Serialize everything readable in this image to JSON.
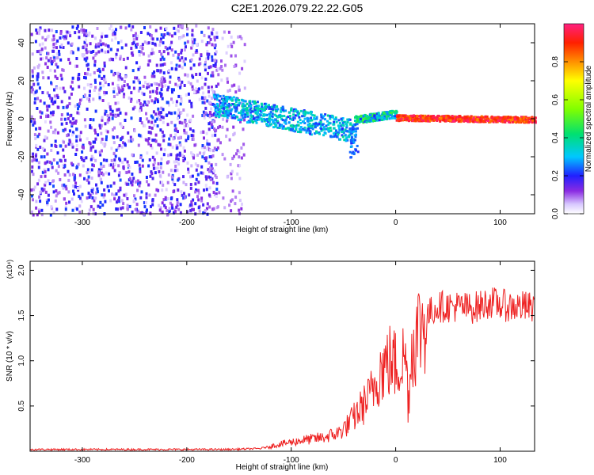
{
  "figure": {
    "title": "C2E1.2026.079.22.22.G05"
  },
  "chart_data": [
    {
      "type": "heatmap",
      "title": "C2E1.2026.079.22.22.G05",
      "xlabel": "Height of straight line (km)",
      "ylabel": "Frequency (Hz)",
      "xlim": [
        -350,
        133
      ],
      "ylim": [
        -50,
        50
      ],
      "x_ticks": [
        -300,
        -200,
        -100,
        0,
        100
      ],
      "y_ticks": [
        -40,
        -20,
        0,
        20,
        40
      ],
      "colorbar": {
        "label": "Normalized spectral amplitude",
        "range": [
          0.0,
          1.0
        ],
        "ticks": [
          0.0,
          0.2,
          0.4,
          0.6,
          0.8
        ],
        "colormap": "rainbow"
      },
      "description_points": [
        {
          "x_range": [
            -350,
            -175
          ],
          "freq_range": [
            -50,
            50
          ],
          "amplitude": [
            0.05,
            0.2
          ],
          "pattern": "noise"
        },
        {
          "x_range": [
            -175,
            -40
          ],
          "freq_center": [
            8,
            -6
          ],
          "freq_halfwidth": 6,
          "amplitude": [
            0.2,
            0.4
          ]
        },
        {
          "x_range": [
            -40,
            0
          ],
          "freq_center": [
            0,
            3
          ],
          "freq_halfwidth": 2,
          "amplitude": [
            0.2,
            0.5
          ]
        },
        {
          "x_range": [
            0,
            133
          ],
          "freq_center": [
            1,
            0
          ],
          "freq_halfwidth": 1.5,
          "amplitude": [
            0.8,
            1.0
          ]
        }
      ]
    },
    {
      "type": "line",
      "xlabel": "Height of straight line (km)",
      "ylabel": "SNR (10 * v/v)",
      "y_multiplier_label": "(x10⁴)",
      "xlim": [
        -350,
        133
      ],
      "ylim": [
        0,
        2.1
      ],
      "x_ticks": [
        -300,
        -200,
        -100,
        0,
        100
      ],
      "y_ticks": [
        0.5,
        1.0,
        1.5,
        2.0
      ],
      "y_tick_labels": [
        "0.5",
        "1.0",
        "1.5",
        "2.0"
      ],
      "series": [
        {
          "color": "#ee2222",
          "x": [
            -350,
            -300,
            -250,
            -200,
            -160,
            -130,
            -110,
            -90,
            -70,
            -55,
            -45,
            -35,
            -25,
            -20,
            -15,
            -10,
            -5,
            0,
            5,
            10,
            12,
            15,
            20,
            25,
            30,
            40,
            50,
            60,
            70,
            80,
            90,
            100,
            110,
            120,
            133
          ],
          "y": [
            0.02,
            0.02,
            0.02,
            0.02,
            0.02,
            0.03,
            0.08,
            0.12,
            0.15,
            0.2,
            0.3,
            0.45,
            0.6,
            0.75,
            0.9,
            0.95,
            1.0,
            0.95,
            1.0,
            1.05,
            0.5,
            1.1,
            1.3,
            1.4,
            1.5,
            1.6,
            1.6,
            1.6,
            1.58,
            1.6,
            1.65,
            1.62,
            1.6,
            1.6,
            1.58
          ]
        }
      ]
    }
  ]
}
